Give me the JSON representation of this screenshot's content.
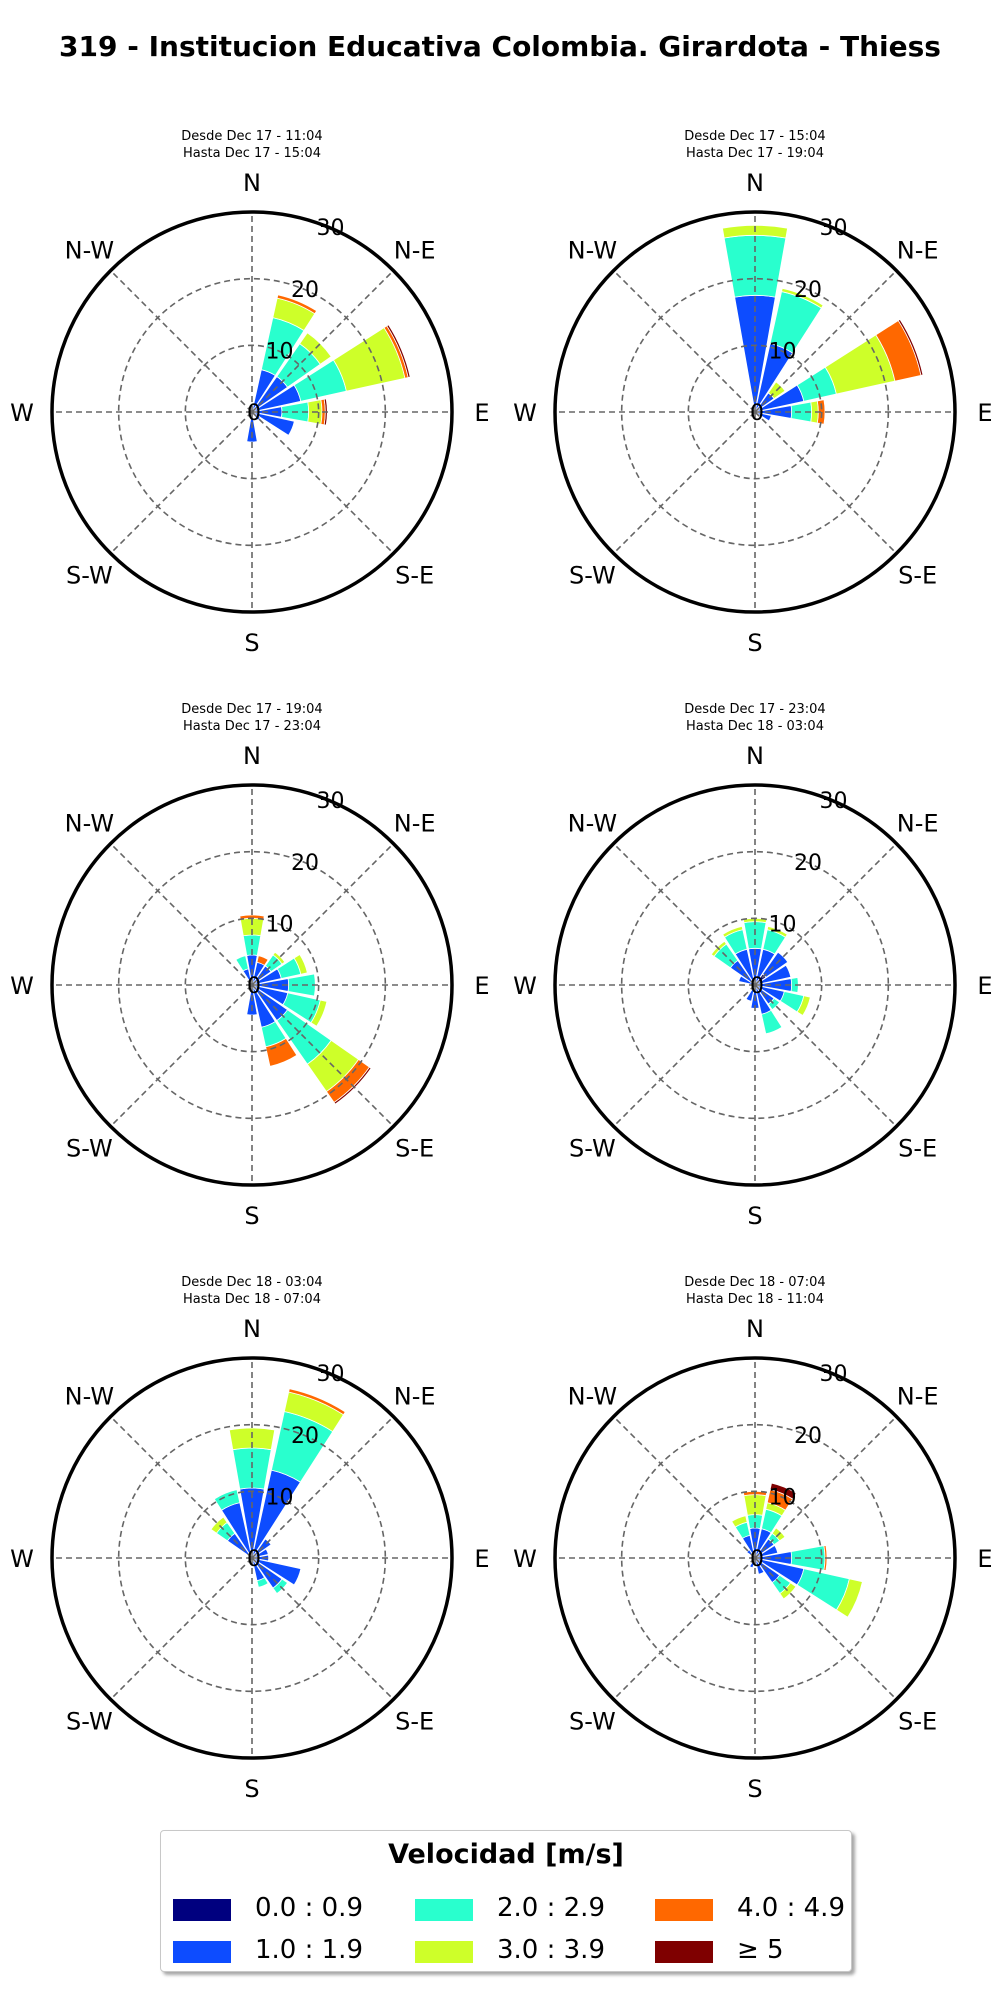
{
  "title": "319 - Institucion Educativa Colombia. Girardota - Thiess",
  "legend": {
    "title": "Velocidad [m/s]",
    "items": [
      {
        "label": "0.0 : 0.9",
        "color": "#00007f"
      },
      {
        "label": "1.0 : 1.9",
        "color": "#0d4cff"
      },
      {
        "label": "2.0 : 2.9",
        "color": "#29ffce"
      },
      {
        "label": "3.0 : 3.9",
        "color": "#ceff29"
      },
      {
        "label": "4.0 : 4.9",
        "color": "#ff6800"
      },
      {
        "label": "≥ 5",
        "color": "#7f0000"
      }
    ]
  },
  "chart_data": [
    {
      "type": "windrose",
      "subtitle": [
        "Desde Dec 17 - 11:04",
        "Hasta Dec 17 - 15:04"
      ],
      "directions": [
        "N",
        "NNE",
        "NE",
        "ENE",
        "E",
        "ESE",
        "SE",
        "SSE",
        "S",
        "SSW",
        "SW",
        "WSW",
        "W",
        "WNW",
        "NW",
        "NNW"
      ],
      "compass_labels": [
        "N",
        "N-E",
        "E",
        "S-E",
        "S",
        "S-W",
        "W",
        "N-W"
      ],
      "radial_ticks": [
        0,
        10,
        20,
        30
      ],
      "rmax": 30,
      "bins": [
        "0.0 : 0.9",
        "1.0 : 1.9",
        "2.0 : 2.9",
        "3.0 : 3.9",
        "4.0 : 4.9",
        "≥ 5"
      ],
      "values": [
        [
          0,
          0,
          0,
          0,
          0,
          0
        ],
        [
          0.5,
          6,
          8,
          3,
          0.5,
          0
        ],
        [
          0.5,
          6,
          6,
          2,
          0,
          0
        ],
        [
          0.5,
          7,
          7,
          9,
          0.5,
          0.3
        ],
        [
          0.5,
          4,
          4,
          2,
          0.5,
          0.3
        ],
        [
          0.5,
          6,
          0,
          0,
          0,
          0
        ],
        [
          0.5,
          1,
          0,
          0,
          0,
          0
        ],
        [
          0,
          0,
          0,
          0,
          0,
          0
        ],
        [
          0.5,
          4,
          0,
          0,
          0,
          0
        ],
        [
          0.5,
          0,
          0,
          0,
          0,
          0
        ],
        [
          0,
          0,
          0,
          0,
          0,
          0
        ],
        [
          0,
          0,
          0,
          0,
          0,
          0
        ],
        [
          0,
          0,
          0,
          0,
          0,
          0
        ],
        [
          0,
          0,
          0,
          0,
          0,
          0
        ],
        [
          0,
          0,
          0,
          0,
          0,
          0
        ],
        [
          0,
          0,
          0,
          0,
          0,
          0
        ]
      ]
    },
    {
      "type": "windrose",
      "subtitle": [
        "Desde Dec 17 - 15:04",
        "Hasta Dec 17 - 19:04"
      ],
      "directions": [
        "N",
        "NNE",
        "NE",
        "ENE",
        "E",
        "ESE",
        "SE",
        "SSE",
        "S",
        "SSW",
        "SW",
        "WSW",
        "W",
        "WNW",
        "NW",
        "NNW"
      ],
      "compass_labels": [
        "N",
        "N-E",
        "E",
        "S-E",
        "S",
        "S-W",
        "W",
        "N-W"
      ],
      "radial_ticks": [
        0,
        10,
        20,
        30
      ],
      "rmax": 30,
      "bins": [
        "0.0 : 0.9",
        "1.0 : 1.9",
        "2.0 : 2.9",
        "3.0 : 3.9",
        "4.0 : 4.9",
        "≥ 5"
      ],
      "values": [
        [
          0.5,
          17,
          9,
          1.5,
          0,
          0
        ],
        [
          0.5,
          10,
          8,
          0.5,
          0,
          0
        ],
        [
          0.5,
          3,
          0,
          2,
          0,
          0
        ],
        [
          0.5,
          7,
          5,
          9,
          4,
          0.3
        ],
        [
          0.5,
          5,
          3,
          1,
          1,
          0
        ],
        [
          0.5,
          2,
          0,
          0,
          0,
          0
        ],
        [
          0,
          0,
          0,
          0,
          0,
          0
        ],
        [
          0,
          0,
          0,
          0,
          0,
          0
        ],
        [
          0,
          0,
          0,
          0,
          0,
          0
        ],
        [
          0,
          0,
          0,
          0,
          0,
          0
        ],
        [
          0,
          0,
          0,
          0,
          0,
          0
        ],
        [
          0,
          0,
          0,
          0,
          0,
          0
        ],
        [
          0,
          0,
          0,
          0,
          0,
          0
        ],
        [
          0,
          0,
          0,
          0,
          0,
          0
        ],
        [
          0,
          0,
          0,
          0,
          0,
          0
        ],
        [
          0,
          0,
          0,
          0,
          0,
          0
        ]
      ]
    },
    {
      "type": "windrose",
      "subtitle": [
        "Desde Dec 17 - 19:04",
        "Hasta Dec 17 - 23:04"
      ],
      "directions": [
        "N",
        "NNE",
        "NE",
        "ENE",
        "E",
        "ESE",
        "SE",
        "SSE",
        "S",
        "SSW",
        "SW",
        "WSW",
        "W",
        "WNW",
        "NW",
        "NNW"
      ],
      "compass_labels": [
        "N",
        "N-E",
        "E",
        "S-E",
        "S",
        "S-W",
        "W",
        "N-W"
      ],
      "radial_ticks": [
        0,
        10,
        20,
        30
      ],
      "rmax": 30,
      "bins": [
        "0.0 : 0.9",
        "1.0 : 1.9",
        "2.0 : 2.9",
        "3.0 : 3.9",
        "4.0 : 4.9",
        "≥ 5"
      ],
      "values": [
        [
          0.5,
          4,
          3,
          2.5,
          0.5,
          0
        ],
        [
          0.5,
          3,
          0,
          0,
          1,
          0
        ],
        [
          0.5,
          3,
          2,
          0.5,
          0,
          0
        ],
        [
          0.5,
          4,
          3,
          1,
          0,
          0
        ],
        [
          0.5,
          5,
          4,
          0,
          0,
          0
        ],
        [
          0.5,
          5,
          5,
          1,
          0,
          0
        ],
        [
          0.5,
          6,
          8,
          5,
          2,
          0.3
        ],
        [
          0.5,
          6,
          3,
          0,
          3,
          0
        ],
        [
          0.5,
          4,
          0,
          0,
          0,
          0
        ],
        [
          0,
          0,
          0,
          0,
          0,
          0
        ],
        [
          0,
          0,
          0,
          0,
          0,
          0
        ],
        [
          0,
          0,
          0,
          0,
          0,
          0
        ],
        [
          0,
          0,
          0,
          0,
          0,
          0
        ],
        [
          0,
          0,
          0,
          0,
          0,
          0
        ],
        [
          0,
          0,
          0,
          0,
          0,
          0
        ],
        [
          0.5,
          2,
          2,
          0,
          0,
          0
        ]
      ]
    },
    {
      "type": "windrose",
      "subtitle": [
        "Desde Dec 17 - 23:04",
        "Hasta Dec 18 - 03:04"
      ],
      "directions": [
        "N",
        "NNE",
        "NE",
        "ENE",
        "E",
        "ESE",
        "SE",
        "SSE",
        "S",
        "SSW",
        "SW",
        "WSW",
        "W",
        "WNW",
        "NW",
        "NNW"
      ],
      "compass_labels": [
        "N",
        "N-E",
        "E",
        "S-E",
        "S",
        "S-W",
        "W",
        "N-W"
      ],
      "radial_ticks": [
        0,
        10,
        20,
        30
      ],
      "rmax": 30,
      "bins": [
        "0.0 : 0.9",
        "1.0 : 1.9",
        "2.0 : 2.9",
        "3.0 : 3.9",
        "4.0 : 4.9",
        "≥ 5"
      ],
      "values": [
        [
          0.5,
          5,
          4,
          0.5,
          0,
          0
        ],
        [
          0.5,
          5,
          3,
          0.5,
          0,
          0
        ],
        [
          2,
          4,
          0,
          0,
          0,
          0
        ],
        [
          0.5,
          5,
          0,
          0,
          0,
          0
        ],
        [
          0.5,
          5,
          1,
          0,
          0,
          0
        ],
        [
          0.5,
          4,
          3,
          1,
          0,
          0
        ],
        [
          0.5,
          3,
          1,
          0,
          0,
          0
        ],
        [
          0.5,
          4,
          3,
          0,
          0,
          0
        ],
        [
          0.5,
          3,
          0,
          0,
          0,
          0
        ],
        [
          0.5,
          2,
          0,
          0,
          0,
          0
        ],
        [
          0,
          0,
          0,
          0,
          0,
          0
        ],
        [
          0,
          0,
          0,
          0,
          0,
          0
        ],
        [
          0,
          0,
          0,
          0,
          0,
          0
        ],
        [
          0.5,
          2,
          0,
          0,
          0,
          0
        ],
        [
          0.5,
          4,
          3,
          0.5,
          0,
          0
        ],
        [
          0.5,
          5,
          3,
          0.5,
          0,
          0
        ]
      ]
    },
    {
      "type": "windrose",
      "subtitle": [
        "Desde Dec 18 - 03:04",
        "Hasta Dec 18 - 07:04"
      ],
      "directions": [
        "N",
        "NNE",
        "NE",
        "ENE",
        "E",
        "ESE",
        "SE",
        "SSE",
        "S",
        "SSW",
        "SW",
        "WSW",
        "W",
        "WNW",
        "NW",
        "NNW"
      ],
      "compass_labels": [
        "N",
        "N-E",
        "E",
        "S-E",
        "S",
        "S-W",
        "W",
        "N-W"
      ],
      "radial_ticks": [
        0,
        10,
        20,
        30
      ],
      "rmax": 30,
      "bins": [
        "0.0 : 0.9",
        "1.0 : 1.9",
        "2.0 : 2.9",
        "3.0 : 3.9",
        "4.0 : 4.9",
        "≥ 5"
      ],
      "values": [
        [
          0.5,
          10,
          6,
          3,
          0,
          0
        ],
        [
          0.5,
          13,
          9,
          3,
          0.5,
          0
        ],
        [
          0.5,
          3,
          0,
          0,
          0,
          0
        ],
        [
          0.5,
          2,
          0,
          0,
          0,
          0
        ],
        [
          0.5,
          2,
          0,
          0,
          0,
          0
        ],
        [
          0.5,
          7,
          0,
          0,
          0,
          0
        ],
        [
          0.5,
          5,
          1,
          0,
          0,
          0
        ],
        [
          0.5,
          3,
          1,
          0,
          0,
          0
        ],
        [
          0,
          0,
          0,
          0,
          0,
          0
        ],
        [
          0,
          0,
          0,
          0,
          0,
          0
        ],
        [
          0,
          0,
          0,
          0,
          0,
          0
        ],
        [
          0,
          0,
          0,
          0,
          0,
          0
        ],
        [
          0,
          0,
          0,
          0,
          0,
          0
        ],
        [
          0,
          0,
          0,
          0,
          0,
          0
        ],
        [
          0.5,
          4,
          2,
          1,
          0,
          0
        ],
        [
          0.5,
          8,
          2,
          0,
          0,
          0
        ]
      ]
    },
    {
      "type": "windrose",
      "subtitle": [
        "Desde Dec 18 - 07:04",
        "Hasta Dec 18 - 11:04"
      ],
      "directions": [
        "N",
        "NNE",
        "NE",
        "ENE",
        "E",
        "ESE",
        "SE",
        "SSE",
        "S",
        "SSW",
        "SW",
        "WSW",
        "W",
        "WNW",
        "NW",
        "NNW"
      ],
      "compass_labels": [
        "N",
        "N-E",
        "E",
        "S-E",
        "S",
        "S-W",
        "W",
        "N-W"
      ],
      "radial_ticks": [
        0,
        10,
        20,
        30
      ],
      "rmax": 30,
      "bins": [
        "0.0 : 0.9",
        "1.0 : 1.9",
        "2.0 : 2.9",
        "3.0 : 3.9",
        "4.0 : 4.9",
        "≥ 5"
      ],
      "values": [
        [
          0.5,
          4,
          2,
          3,
          0.5,
          0
        ],
        [
          0.5,
          4,
          3,
          1,
          2,
          1
        ],
        [
          0.5,
          3,
          1,
          1,
          0,
          0
        ],
        [
          0.5,
          3,
          0,
          0,
          0,
          0
        ],
        [
          0.5,
          5,
          5,
          0,
          0.3,
          0
        ],
        [
          0.5,
          7,
          7,
          2,
          0,
          0
        ],
        [
          0.5,
          4,
          2,
          1,
          0,
          0
        ],
        [
          0.5,
          2,
          0,
          0,
          0,
          0
        ],
        [
          0,
          0,
          0,
          0,
          0,
          0
        ],
        [
          0.5,
          1,
          0,
          0,
          0,
          0
        ],
        [
          0,
          0,
          0,
          0,
          0,
          0
        ],
        [
          0,
          0,
          0,
          0,
          0,
          0
        ],
        [
          0,
          0,
          0,
          0,
          0,
          0
        ],
        [
          0,
          0,
          0,
          0,
          0,
          0
        ],
        [
          0.5,
          1,
          0,
          0,
          0,
          0
        ],
        [
          0.5,
          3,
          2,
          1,
          0,
          0
        ]
      ]
    }
  ]
}
